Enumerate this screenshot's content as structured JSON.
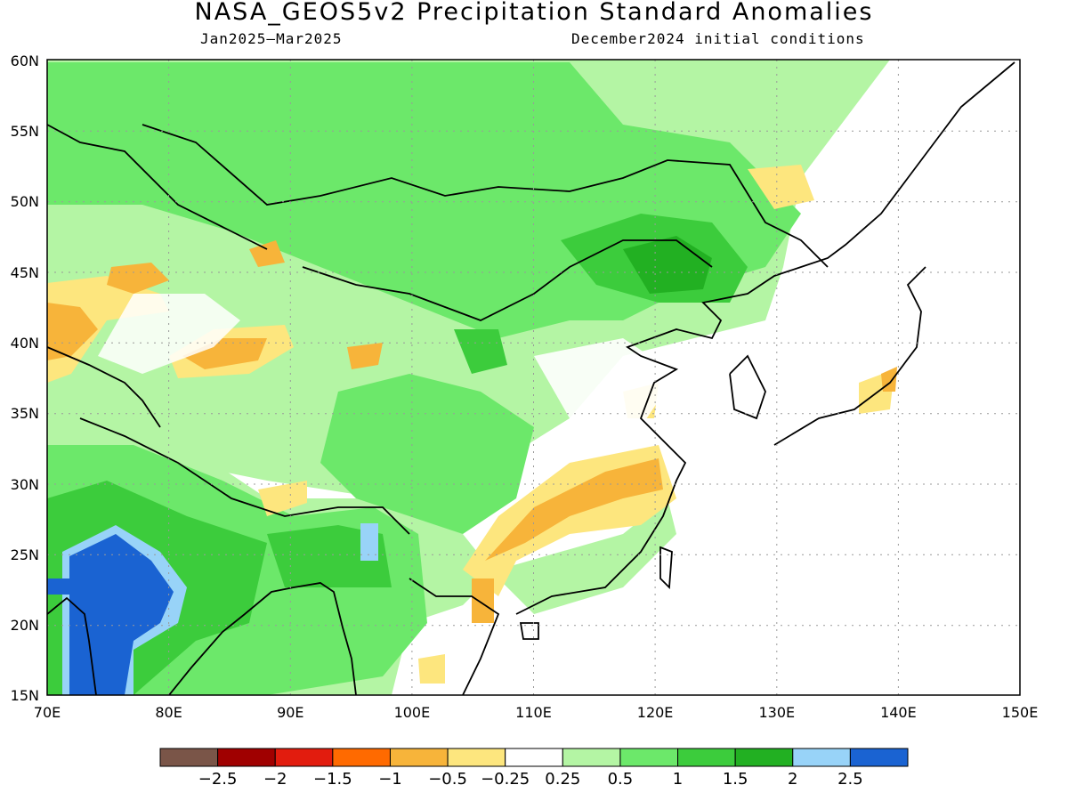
{
  "title": "NASA_GEOS5v2 Precipitation Standard Anomalies",
  "subtitle_left": "Jan2025–Mar2025",
  "subtitle_right": "December2024 initial conditions",
  "map": {
    "lon_range": [
      70,
      150
    ],
    "lat_range": [
      15,
      60
    ],
    "lat_labels": [
      "15N",
      "20N",
      "25N",
      "30N",
      "35N",
      "40N",
      "45N",
      "50N",
      "55N",
      "60N"
    ],
    "lon_labels": [
      "70E",
      "80E",
      "90E",
      "100E",
      "110E",
      "120E",
      "130E",
      "140E",
      "150E"
    ]
  },
  "colorbar": {
    "colors": [
      "#7a5548",
      "#a00000",
      "#e21c0e",
      "#ff6a00",
      "#f7b43a",
      "#fde67e",
      "#ffffff",
      "#b4f5a4",
      "#6ce86a",
      "#3ccc3c",
      "#22b022",
      "#98d3f8",
      "#1a63d2"
    ],
    "labels": [
      "−2.5",
      "−2",
      "−1.5",
      "−1",
      "−0.5",
      "−0.25",
      "0.25",
      "0.5",
      "1",
      "1.5",
      "2",
      "2.5"
    ]
  }
}
